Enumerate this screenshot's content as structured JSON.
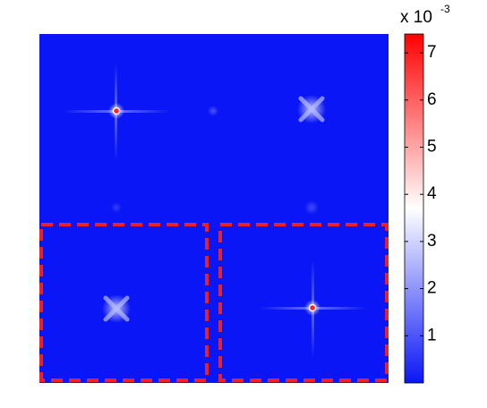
{
  "chart_data": {
    "type": "heatmap",
    "colorbar": {
      "clim": [
        0,
        7.4
      ],
      "ticks": [
        1,
        2,
        3,
        4,
        5,
        6,
        7
      ],
      "colormap": [
        "#0a16f5",
        "#ffffff",
        "#ff0000"
      ],
      "label": {
        "base": "x 10",
        "exponent": "-3"
      }
    }
  }
}
